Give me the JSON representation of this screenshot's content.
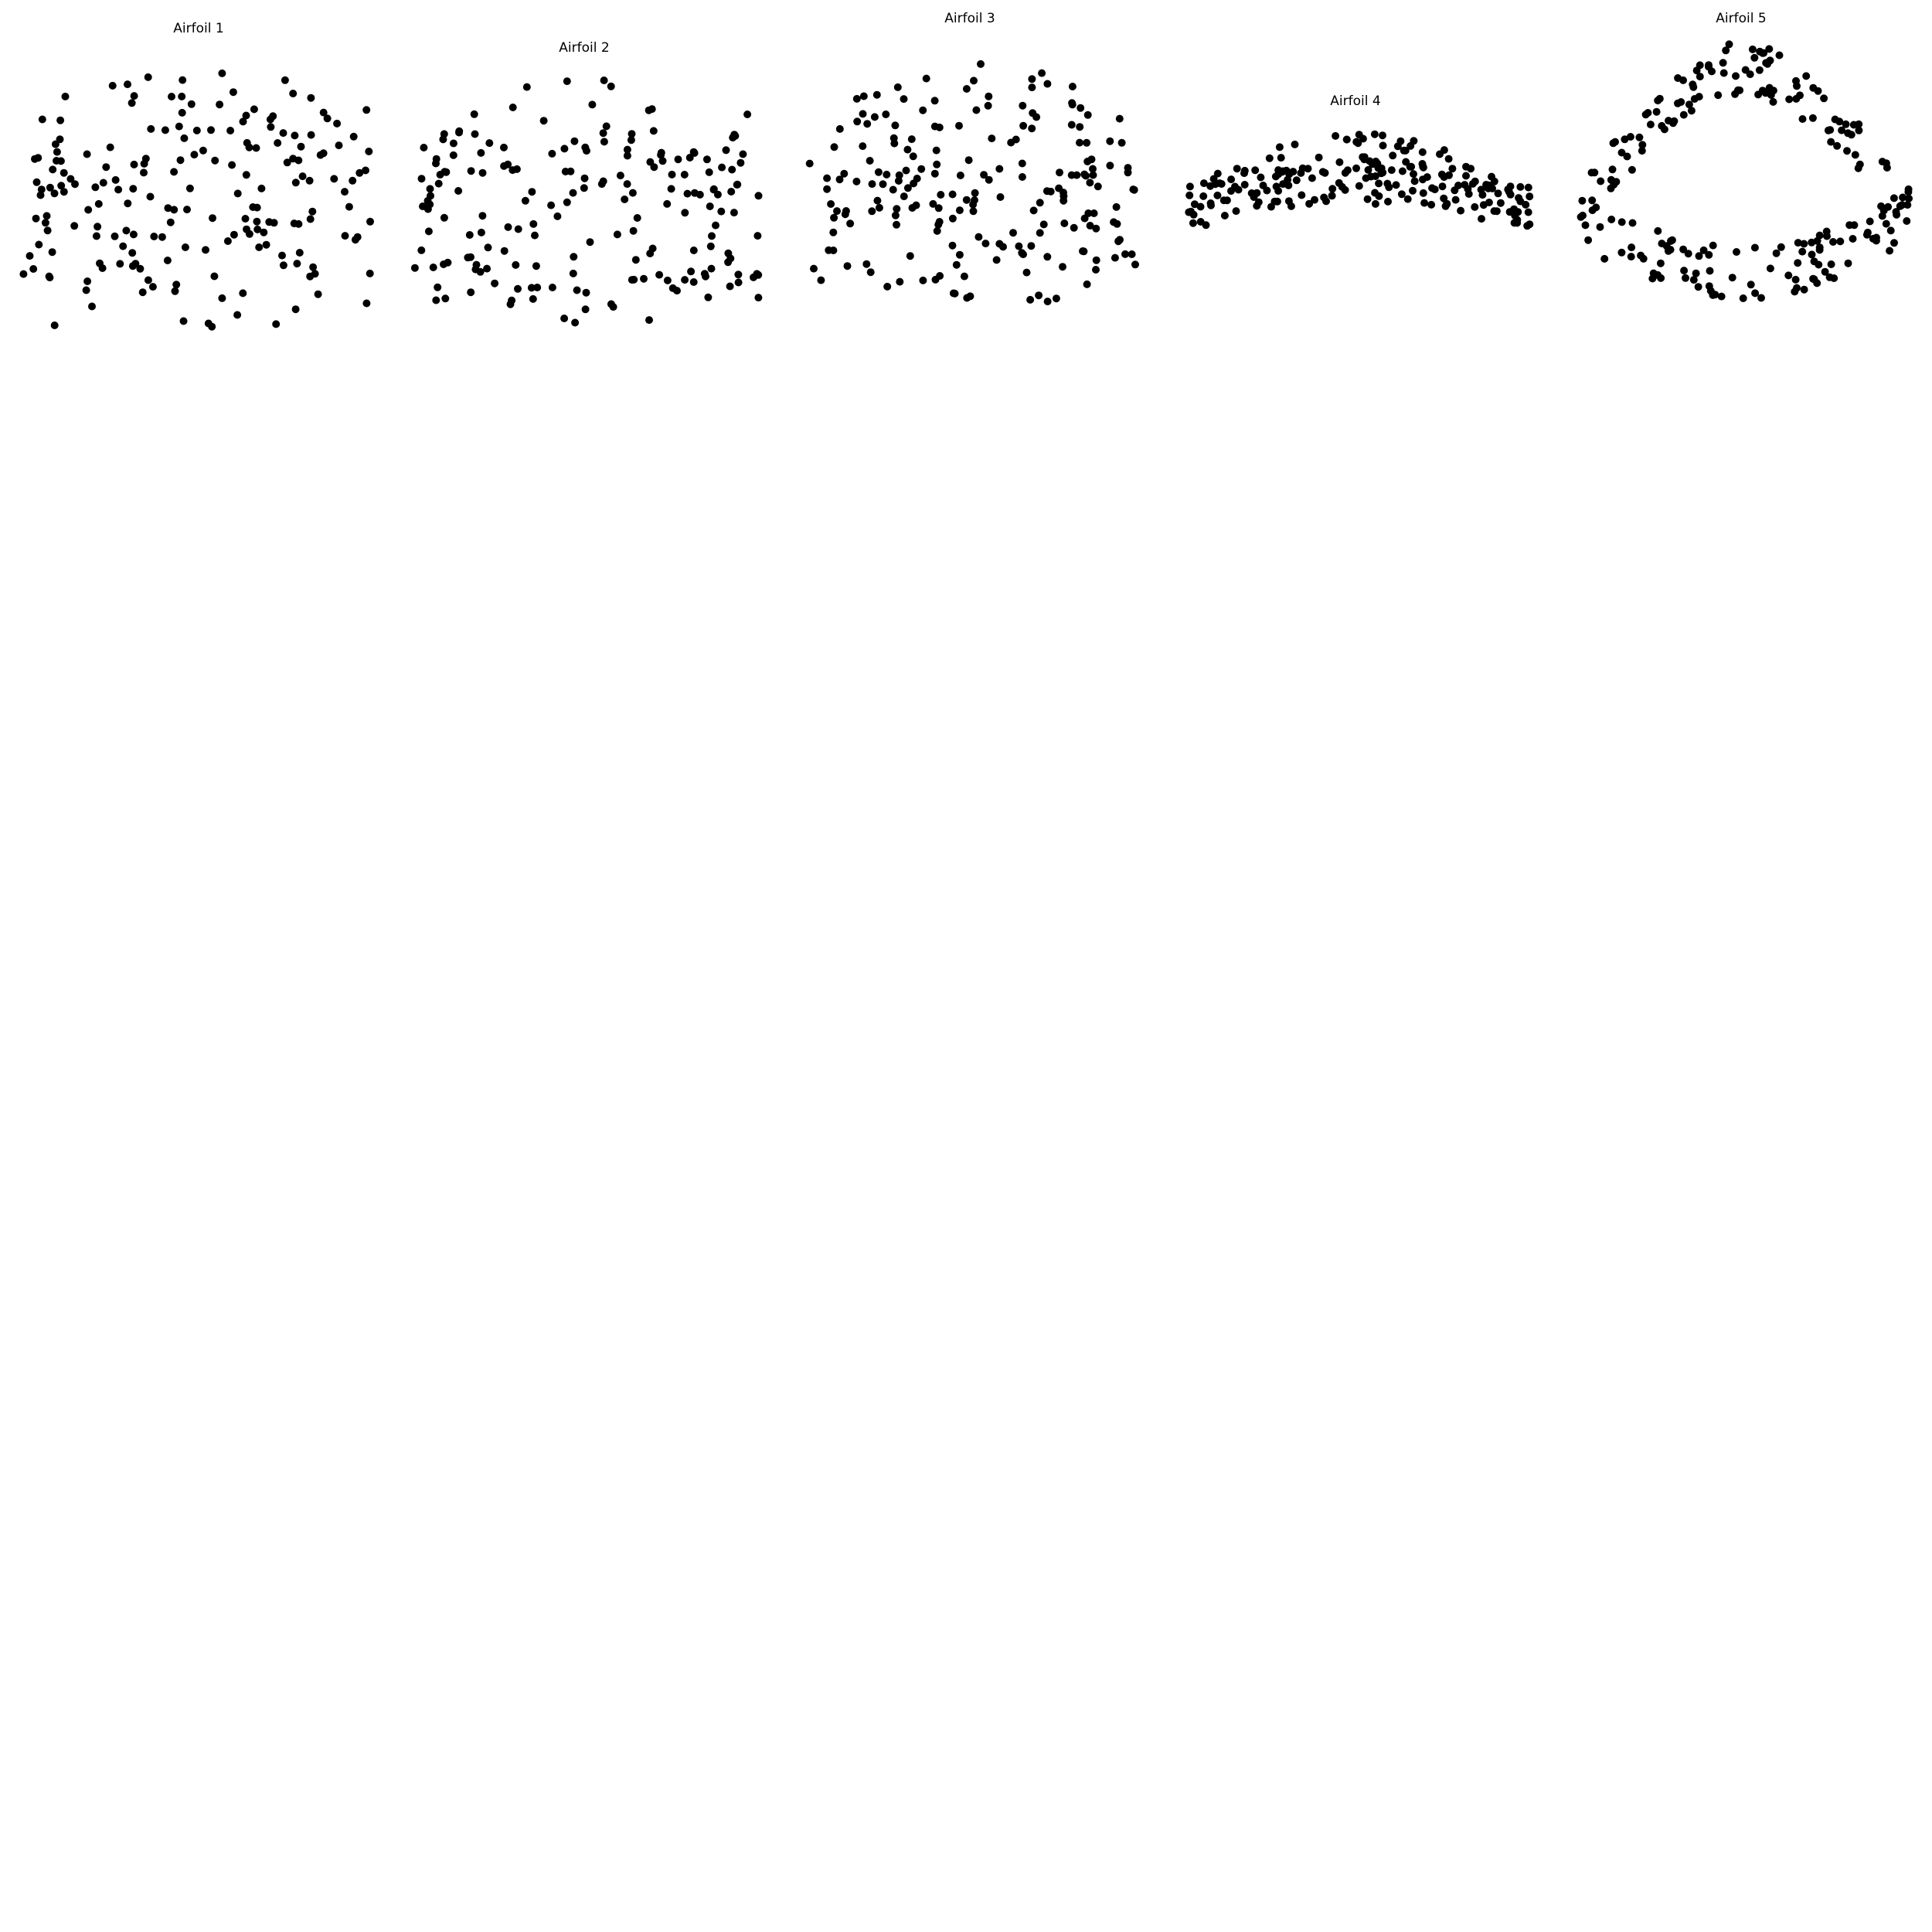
{
  "chart_data": [
    {
      "type": "scatter",
      "title": "Airfoil 1",
      "xlabel": "",
      "ylabel": "",
      "axes_visible": false,
      "grid": false,
      "xlim": [
        0,
        1
      ],
      "ylim": [
        -0.62,
        0.62
      ],
      "marker_color": "#000000",
      "gen": {
        "n": 190,
        "seed": 11,
        "upper_amp": 0.13,
        "lower_amp": -0.02,
        "spread": 0.45,
        "band": 0.5
      }
    },
    {
      "type": "scatter",
      "title": "Airfoil 2",
      "xlabel": "",
      "ylabel": "",
      "axes_visible": false,
      "grid": false,
      "xlim": [
        0,
        1
      ],
      "ylim": [
        -0.58,
        0.55
      ],
      "marker_color": "#000000",
      "gen": {
        "n": 190,
        "seed": 23,
        "upper_amp": 0.1,
        "lower_amp": 0.0,
        "spread": 0.48,
        "band": 0.45
      }
    },
    {
      "type": "scatter",
      "title": "Airfoil 3",
      "xlabel": "",
      "ylabel": "",
      "axes_visible": false,
      "grid": false,
      "xlim": [
        0,
        1
      ],
      "ylim": [
        -0.68,
        0.62
      ],
      "marker_color": "#000000",
      "gen": {
        "n": 200,
        "seed": 37,
        "upper_amp": 0.2,
        "lower_amp": 0.0,
        "spread": 0.5,
        "band": 0.42
      }
    },
    {
      "type": "scatter",
      "title": "Airfoil 4",
      "xlabel": "",
      "ylabel": "",
      "axes_visible": false,
      "grid": false,
      "xlim": [
        0,
        1
      ],
      "ylim": [
        -0.35,
        0.35
      ],
      "marker_color": "#000000",
      "gen": {
        "n": 210,
        "seed": 41,
        "upper_amp": 0.2,
        "lower_amp": 0.1,
        "spread": 0.08,
        "band": 0.1,
        "thin": true
      }
    },
    {
      "type": "scatter",
      "title": "Airfoil 5",
      "xlabel": "",
      "ylabel": "",
      "axes_visible": false,
      "grid": false,
      "xlim": [
        0,
        1
      ],
      "ylim": [
        -0.62,
        0.66
      ],
      "marker_color": "#000000",
      "gen": {
        "n": 220,
        "seed": 53,
        "upper_amp": 0.55,
        "lower_amp": -0.2,
        "spread": 0.1,
        "band": 0.12,
        "thin": true
      }
    }
  ]
}
